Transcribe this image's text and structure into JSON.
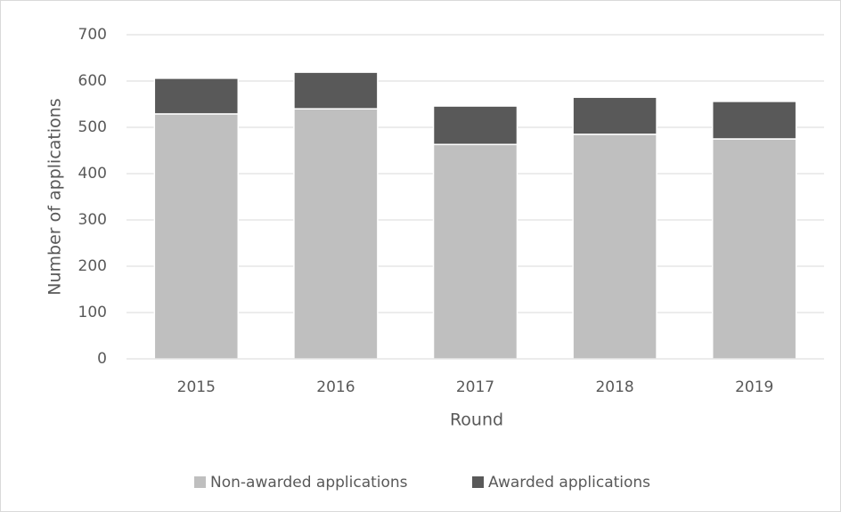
{
  "chart_data": {
    "type": "stacked_bar",
    "x_label": "Round",
    "y_label": "Number of applications",
    "categories": [
      "2015",
      "2016",
      "2017",
      "2018",
      "2019"
    ],
    "series": [
      {
        "name": "Non-awarded applications",
        "color": "#bfbfbf",
        "values": [
          529,
          540,
          463,
          485,
          475
        ]
      },
      {
        "name": "Awarded applications",
        "color": "#595959",
        "values": [
          77,
          79,
          83,
          80,
          81
        ]
      }
    ],
    "ylim": [
      0,
      700
    ],
    "yticks": [
      0,
      100,
      200,
      300,
      400,
      500,
      600,
      700
    ],
    "grid": true,
    "legend": "bottom"
  }
}
